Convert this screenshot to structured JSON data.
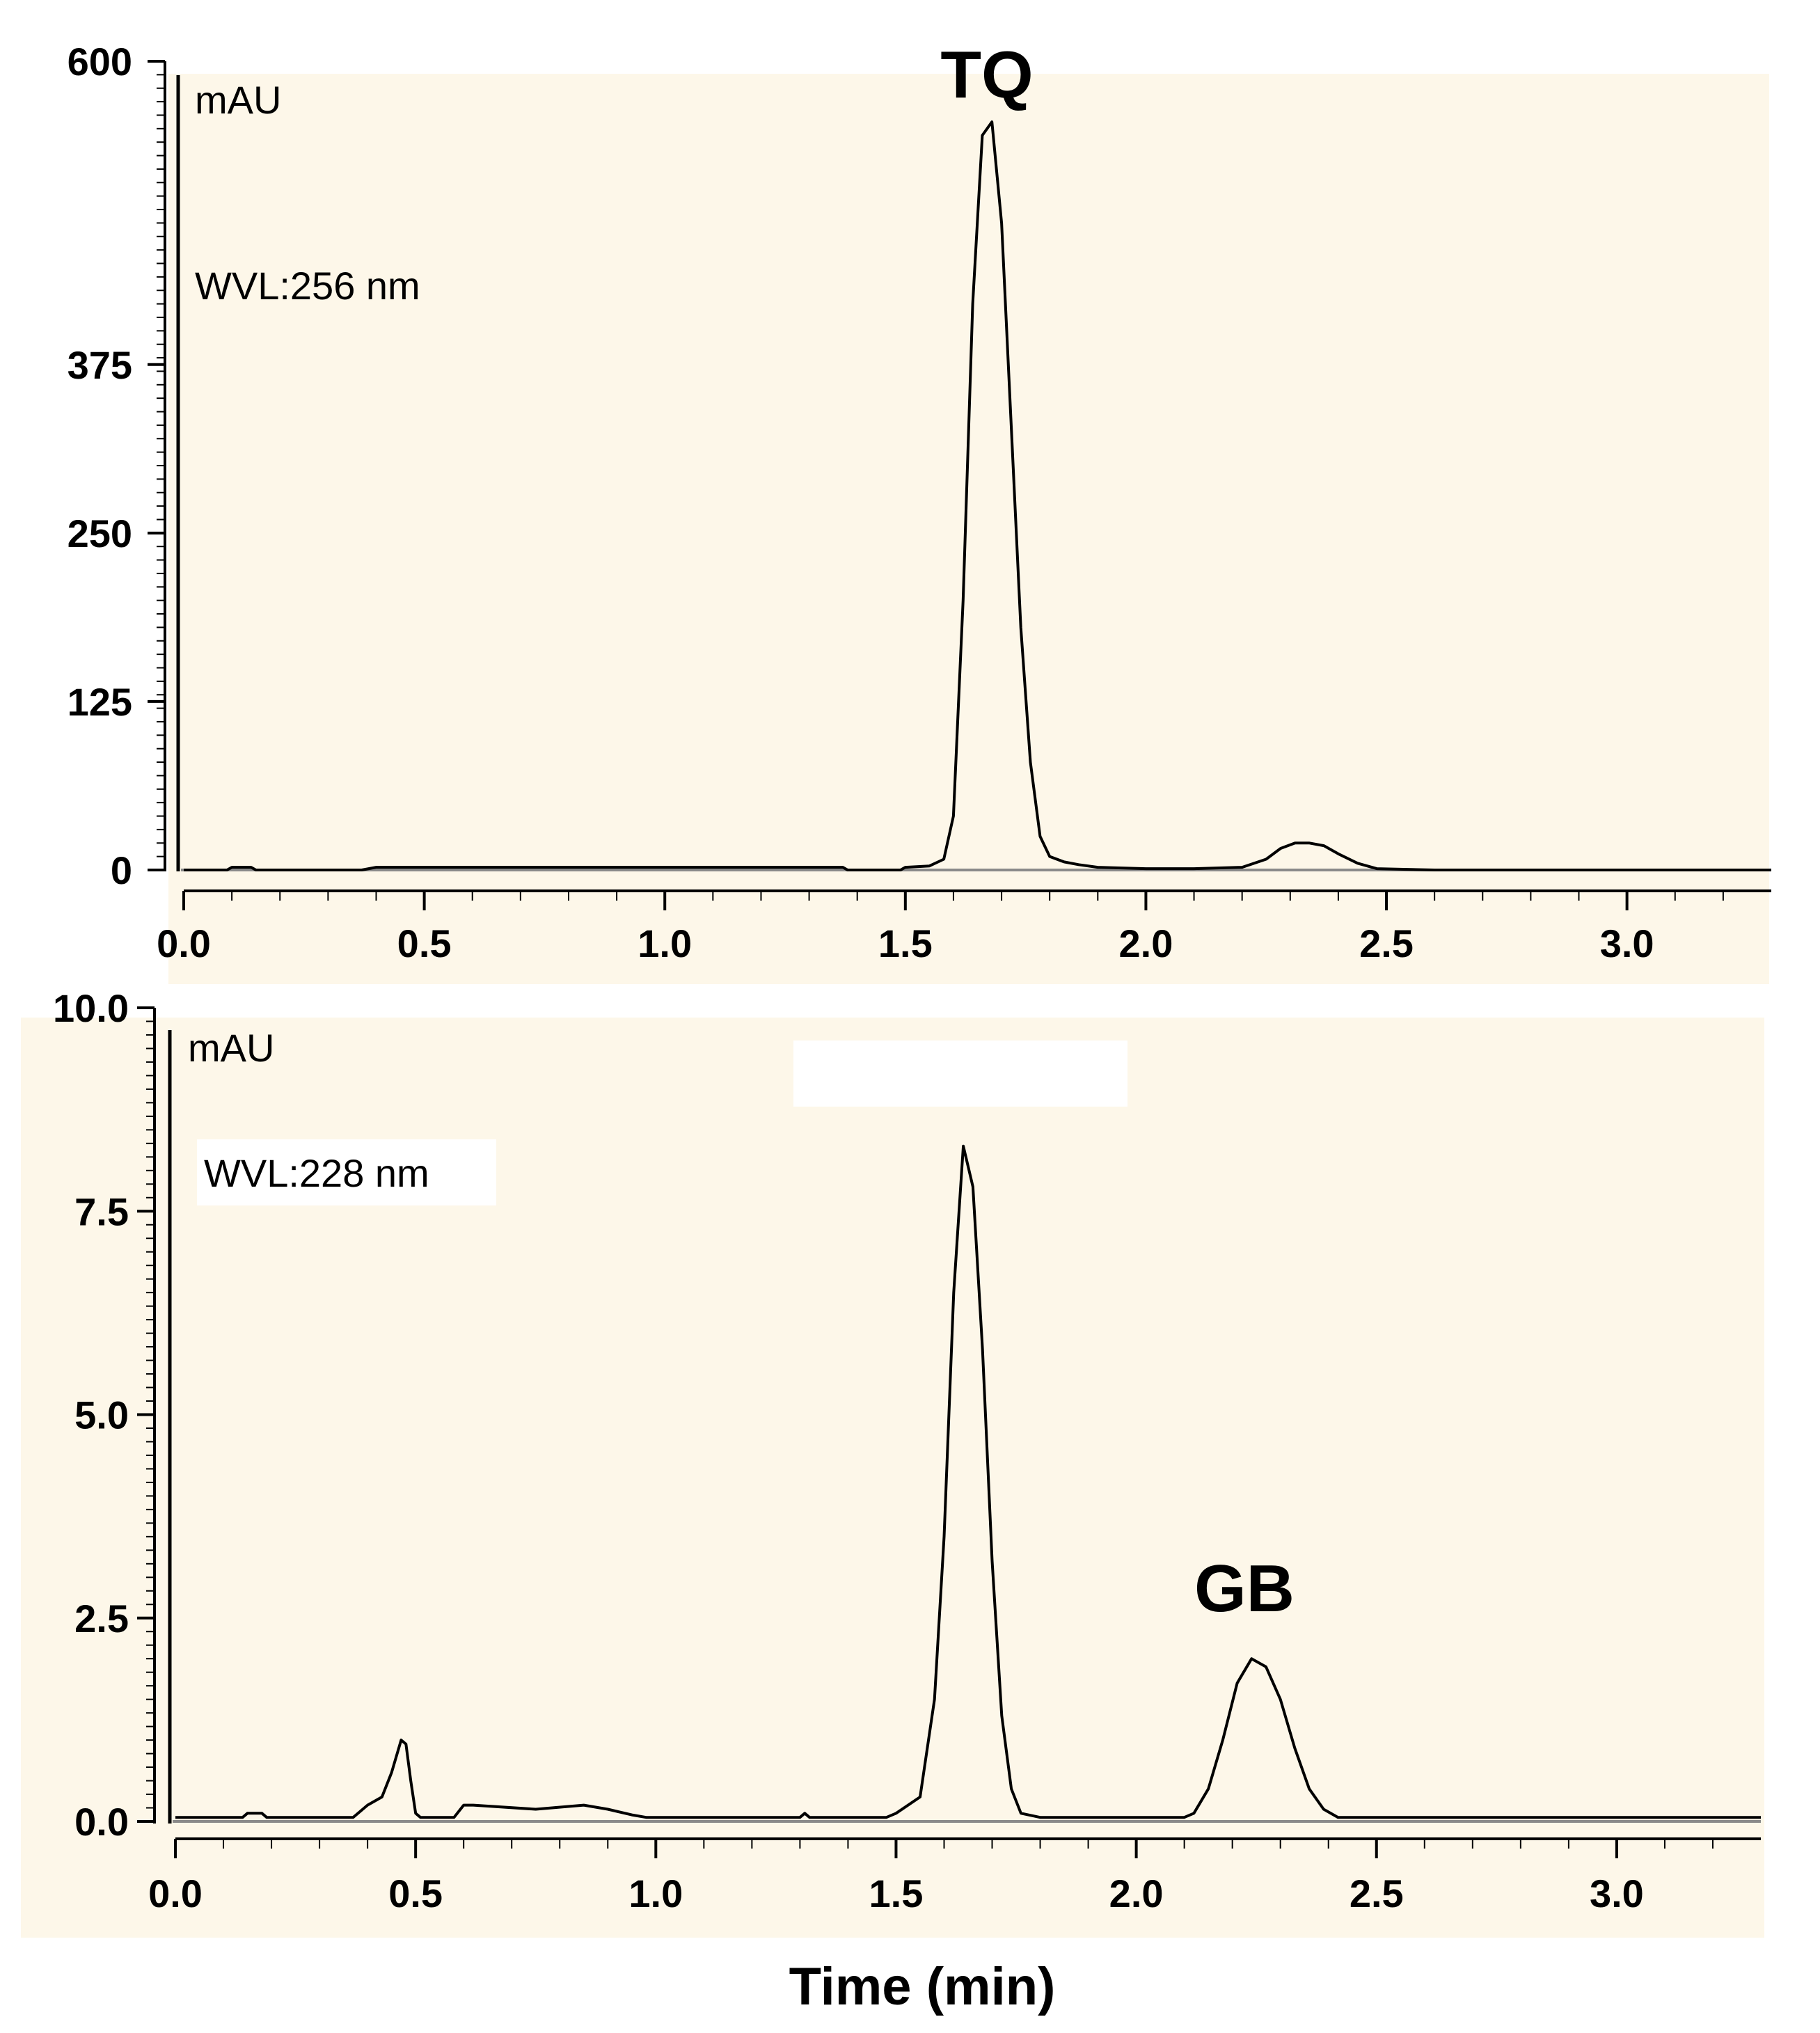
{
  "colors": {
    "plot_background": "#fdf7e9",
    "line": "#000000",
    "axis": "#000000",
    "baseline": "#8a8a8a"
  },
  "x_axis_title": "Time (min)",
  "chart_data": [
    {
      "type": "line",
      "x_unit": "min",
      "y_unit_label": "mAU",
      "wavelength_label": "WVL:256 nm",
      "xlim": [
        0.0,
        3.3
      ],
      "ylim": [
        0,
        600
      ],
      "x_ticks": [
        "0.0",
        "0.5",
        "1.0",
        "1.5",
        "2.0",
        "2.5",
        "3.0"
      ],
      "y_ticks": [
        "0",
        "125",
        "250",
        "375",
        "600"
      ],
      "grid": false,
      "peak_labels": [
        {
          "text": "TQ",
          "time": 1.67
        }
      ],
      "series": [
        {
          "x": [
            0.0,
            0.09,
            0.1,
            0.14,
            0.15,
            0.37,
            0.4,
            0.55,
            1.37,
            1.38,
            1.49,
            1.5,
            1.55,
            1.58,
            1.6,
            1.62,
            1.64,
            1.66,
            1.68,
            1.7,
            1.72,
            1.74,
            1.76,
            1.78,
            1.8,
            1.83,
            1.86,
            1.9,
            2.0,
            2.1,
            2.2,
            2.25,
            2.28,
            2.31,
            2.34,
            2.37,
            2.4,
            2.44,
            2.48,
            2.6,
            3.3
          ],
          "y": [
            0,
            0,
            2,
            2,
            0,
            0,
            2,
            2,
            2,
            0,
            0,
            2,
            3,
            8,
            40,
            200,
            420,
            545,
            555,
            480,
            330,
            180,
            80,
            25,
            10,
            6,
            4,
            2,
            1,
            1,
            2,
            8,
            16,
            20,
            20,
            18,
            12,
            5,
            1,
            0,
            0
          ]
        }
      ]
    },
    {
      "type": "line",
      "x_unit": "min",
      "y_unit_label": "mAU",
      "wavelength_label": "WVL:228 nm",
      "xlim": [
        0.0,
        3.3
      ],
      "ylim": [
        0.0,
        10.0
      ],
      "x_ticks": [
        "0.0",
        "0.5",
        "1.0",
        "1.5",
        "2.0",
        "2.5",
        "3.0"
      ],
      "y_ticks": [
        "0.0",
        "2.5",
        "5.0",
        "7.5",
        "10.0"
      ],
      "grid": false,
      "peak_labels": [
        {
          "text": "GB",
          "time": 2.22
        }
      ],
      "series": [
        {
          "x": [
            0.0,
            0.14,
            0.15,
            0.18,
            0.19,
            0.37,
            0.4,
            0.43,
            0.45,
            0.47,
            0.48,
            0.49,
            0.5,
            0.51,
            0.58,
            0.6,
            0.62,
            0.75,
            0.85,
            0.9,
            0.95,
            0.98,
            1.0,
            1.3,
            1.31,
            1.32,
            1.48,
            1.5,
            1.55,
            1.58,
            1.6,
            1.62,
            1.64,
            1.66,
            1.68,
            1.7,
            1.72,
            1.74,
            1.76,
            1.8,
            1.85,
            2.1,
            2.12,
            2.15,
            2.18,
            2.21,
            2.24,
            2.27,
            2.3,
            2.33,
            2.36,
            2.39,
            2.42,
            3.3
          ],
          "y": [
            0.05,
            0.05,
            0.1,
            0.1,
            0.05,
            0.05,
            0.2,
            0.3,
            0.6,
            1.0,
            0.95,
            0.5,
            0.1,
            0.05,
            0.05,
            0.2,
            0.2,
            0.15,
            0.2,
            0.15,
            0.08,
            0.05,
            0.05,
            0.05,
            0.1,
            0.05,
            0.05,
            0.1,
            0.3,
            1.5,
            3.5,
            6.5,
            8.3,
            7.8,
            5.8,
            3.2,
            1.3,
            0.4,
            0.1,
            0.05,
            0.05,
            0.05,
            0.1,
            0.4,
            1.0,
            1.7,
            2.0,
            1.9,
            1.5,
            0.9,
            0.4,
            0.15,
            0.05,
            0.05
          ]
        }
      ]
    }
  ]
}
